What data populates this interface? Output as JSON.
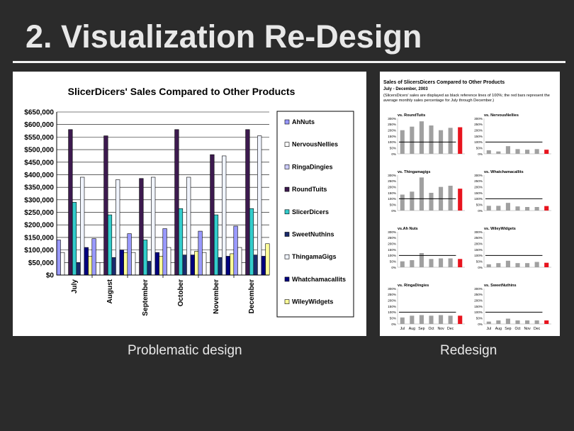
{
  "slide": {
    "title": "2. Visualization Re-Design",
    "caption_left": "Problematic design",
    "caption_right": "Redesign"
  },
  "colors": {
    "background": "#2b2b2b",
    "ref_line": "#000000",
    "normal_bar": "#a0a0a0",
    "highlight_bar": "#e8141e"
  },
  "chart_data": [
    {
      "type": "bar",
      "title": "SlicerDicers' Sales Compared to Other Products",
      "categories": [
        "July",
        "August",
        "September",
        "October",
        "November",
        "December"
      ],
      "y_ticks": [
        "$650,000",
        "$600,000",
        "$550,000",
        "$500,000",
        "$450,000",
        "$400,000",
        "$350,000",
        "$300,000",
        "$250,000",
        "$200,000",
        "$150,000",
        "$100,000",
        "$50,000",
        "$0"
      ],
      "ylim": [
        0,
        650000
      ],
      "grid": true,
      "legend_position": "right",
      "series": [
        {
          "name": "AhNuts",
          "color": "#9999ff",
          "values": [
            140000,
            145000,
            165000,
            185000,
            175000,
            195000
          ]
        },
        {
          "name": "NervousNellies",
          "color": "#ffffff",
          "values": [
            90000,
            50000,
            90000,
            110000,
            90000,
            110000
          ]
        },
        {
          "name": "RingaDingies",
          "color": "#ccccff",
          "values": [
            0,
            0,
            0,
            0,
            0,
            0
          ]
        },
        {
          "name": "RoundTuits",
          "color": "#3d1a4f",
          "values": [
            580000,
            555000,
            385000,
            580000,
            480000,
            580000
          ]
        },
        {
          "name": "SlicerDicers",
          "color": "#33cccc",
          "values": [
            290000,
            240000,
            140000,
            265000,
            240000,
            265000
          ]
        },
        {
          "name": "SweetNuthins",
          "color": "#1a2a6b",
          "values": [
            50000,
            70000,
            55000,
            80000,
            70000,
            80000
          ]
        },
        {
          "name": "ThingamaGigs",
          "color": "#f0f4ff",
          "values": [
            390000,
            380000,
            390000,
            390000,
            475000,
            555000
          ]
        },
        {
          "name": "Whatchamacallits",
          "color": "#000080",
          "values": [
            110000,
            100000,
            90000,
            80000,
            75000,
            75000
          ]
        },
        {
          "name": "WileyWidgets",
          "color": "#ffff99",
          "values": [
            75000,
            90000,
            75000,
            95000,
            85000,
            125000
          ]
        }
      ]
    },
    {
      "type": "bar",
      "title": "Sales of SlicersDicers Compared to Other Products",
      "subtitle": "July - December, 2003",
      "note": "(SlicersDicers' sales are displayed as black reference lines of 100%; the red bars represent the average monthly sales percentage for July through December.)",
      "categories": [
        "Jul",
        "Aug",
        "Sep",
        "Oct",
        "Nov",
        "Dec"
      ],
      "y_ticks": [
        "300%",
        "250%",
        "200%",
        "150%",
        "100%",
        "50%",
        "0%"
      ],
      "ylim": [
        0,
        300
      ],
      "reference_value": 100,
      "panels": [
        {
          "title": "vs. RoundTuits",
          "values": [
            200,
            230,
            275,
            240,
            200,
            220
          ],
          "average": 225
        },
        {
          "title": "vs. NervousNellies",
          "values": [
            30,
            20,
            65,
            40,
            35,
            40
          ],
          "average": 35
        },
        {
          "title": "vs. Thingamagigs",
          "values": [
            135,
            160,
            280,
            150,
            200,
            210
          ],
          "average": 185
        },
        {
          "title": "vs. Whatchamacallits",
          "values": [
            40,
            40,
            65,
            35,
            30,
            30
          ],
          "average": 38
        },
        {
          "title": "vs.Ah Nuts",
          "values": [
            50,
            60,
            120,
            70,
            75,
            75
          ],
          "average": 70
        },
        {
          "title": "vs. WileyWidgets",
          "values": [
            25,
            35,
            55,
            35,
            35,
            45
          ],
          "average": 38
        },
        {
          "title": "vs. RingaDingies",
          "values": [
            55,
            70,
            75,
            70,
            75,
            70
          ],
          "average": 70
        },
        {
          "title": "vs. SweetNuthins",
          "values": [
            20,
            30,
            45,
            30,
            30,
            30
          ],
          "average": 30
        }
      ]
    }
  ]
}
